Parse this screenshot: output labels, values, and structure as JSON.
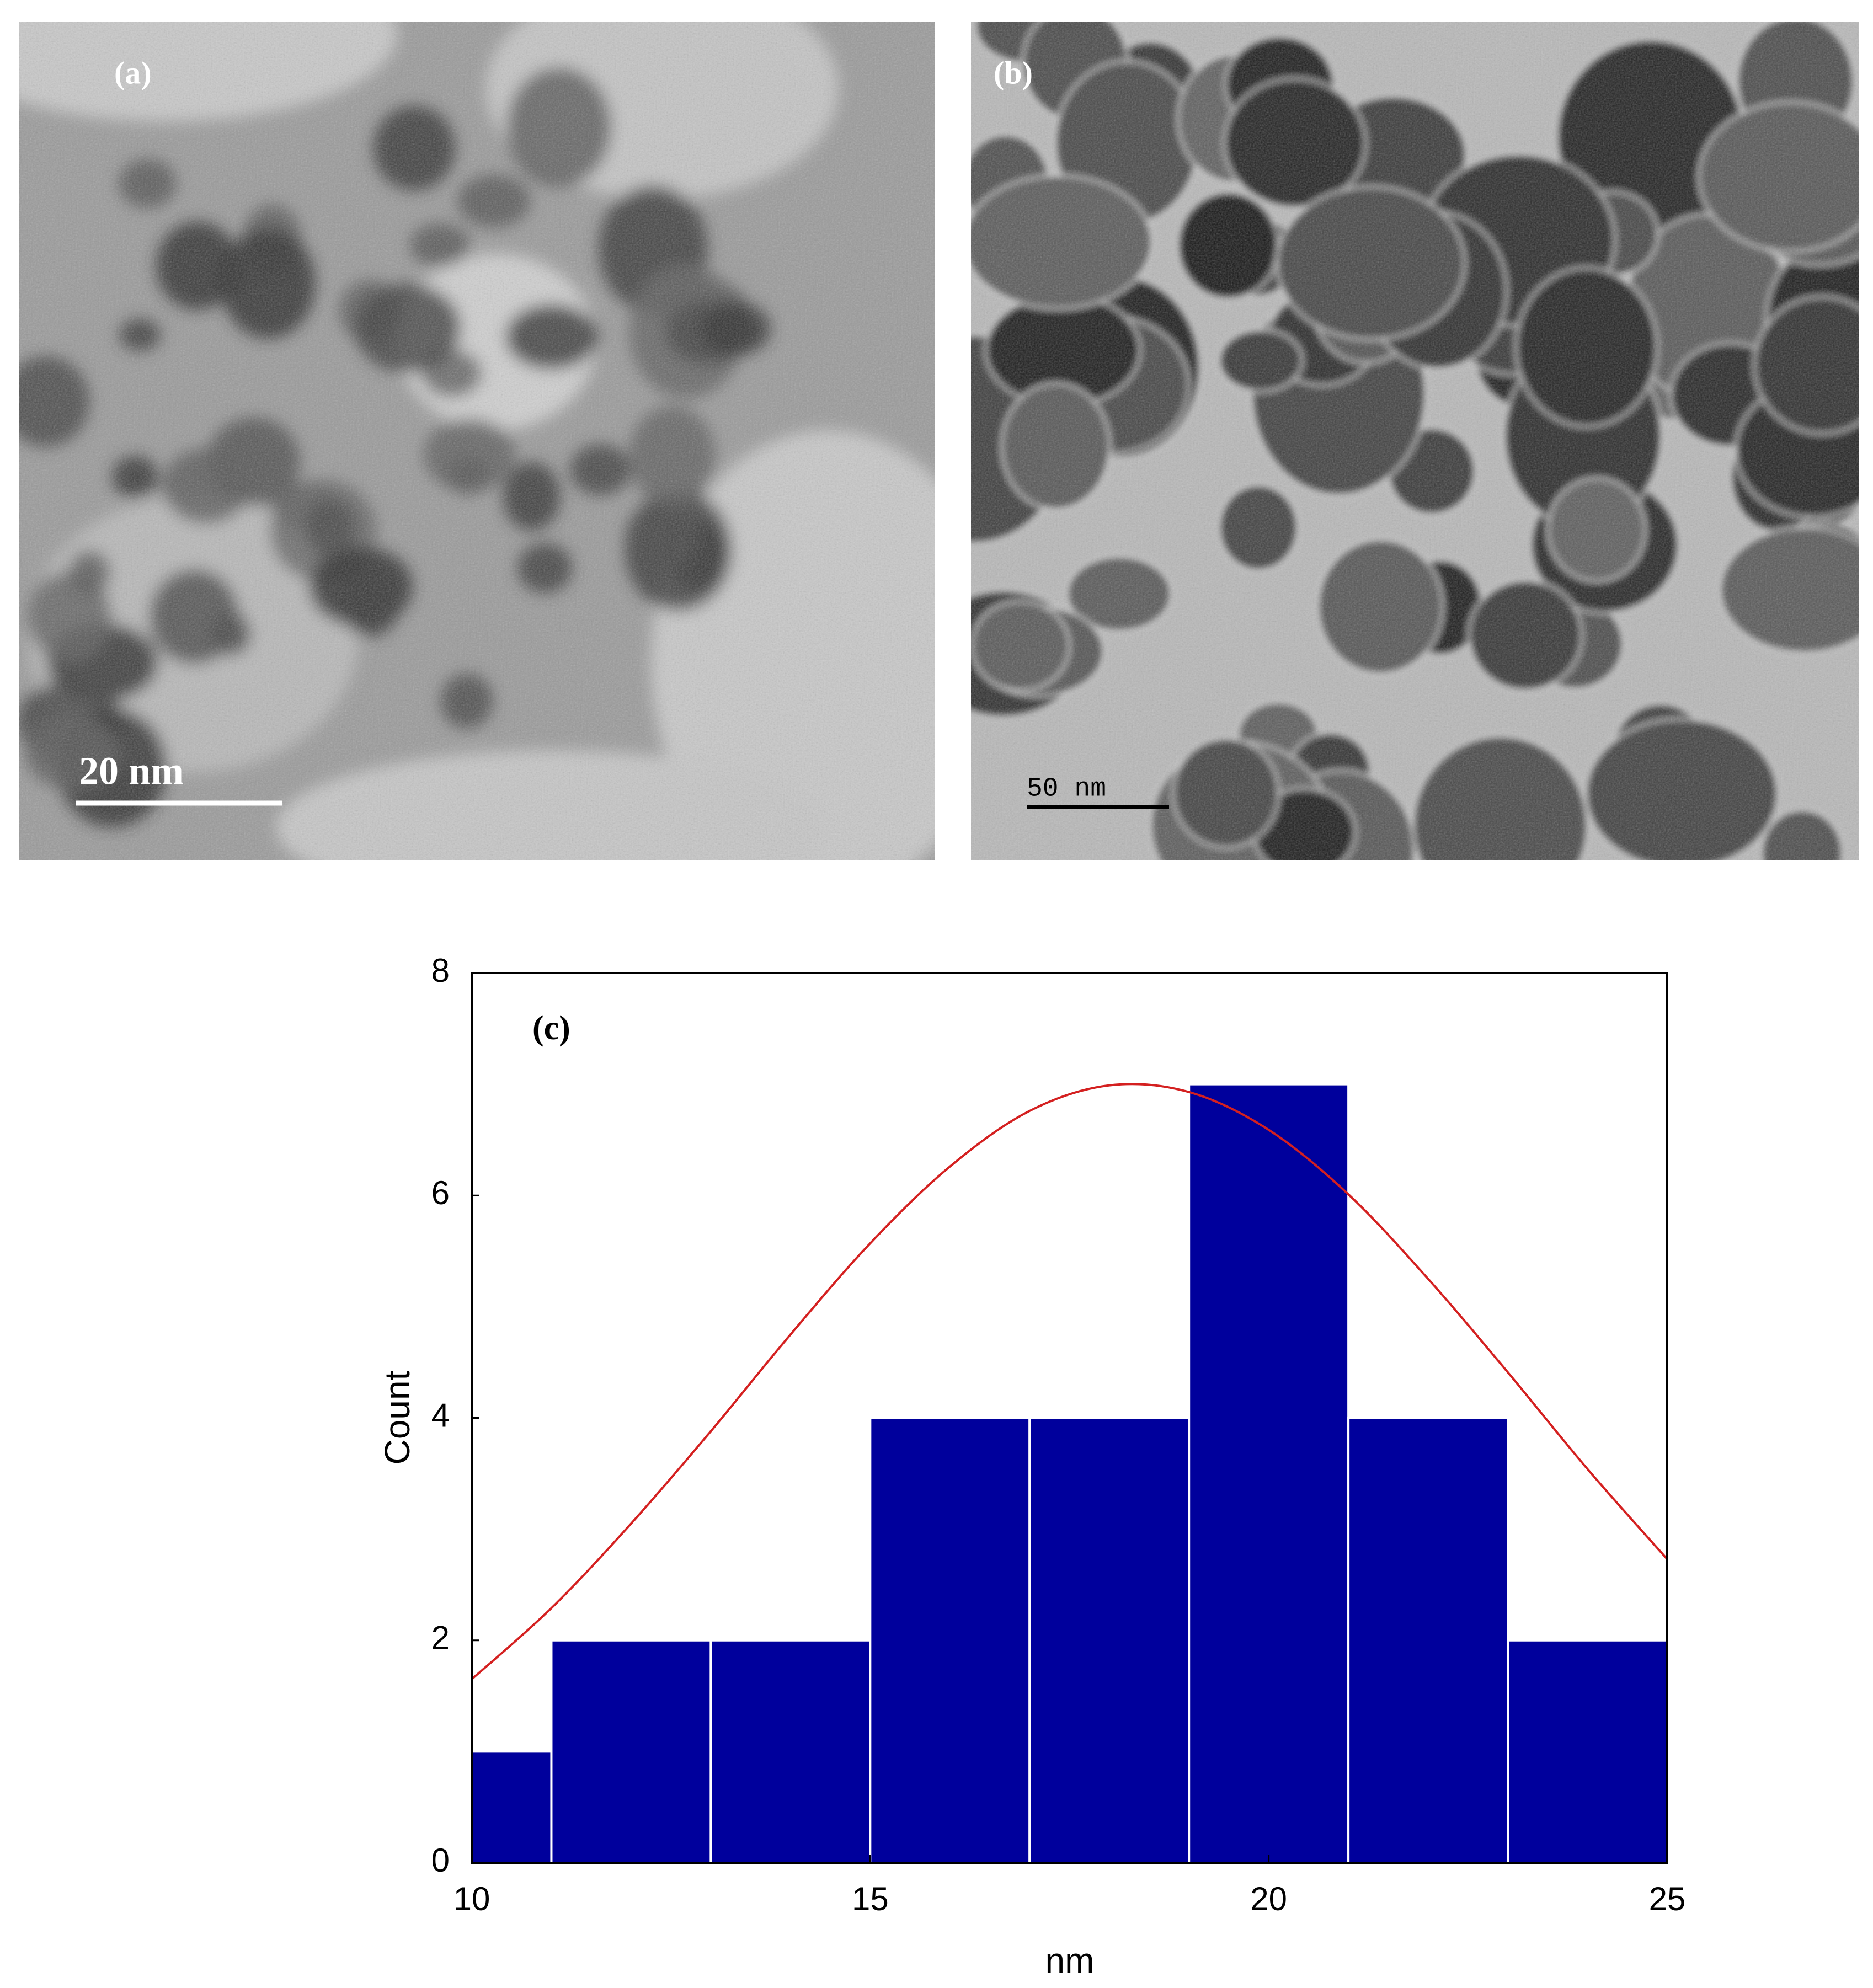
{
  "panels": [
    {
      "label": "(a)",
      "scale_bar": "20 nm"
    },
    {
      "label": "(b)",
      "scale_bar": "50 nm"
    }
  ],
  "chart_data": {
    "type": "histogram",
    "label": "(c)",
    "x_label": "nm",
    "y_label": "Count",
    "bins": [
      10,
      11,
      13,
      15,
      17,
      19,
      21,
      23,
      25
    ],
    "values": [
      1,
      2,
      2,
      4,
      4,
      7,
      4,
      2
    ],
    "color": "#00009c",
    "xlim": [
      10,
      25
    ],
    "xticks": [
      10,
      15,
      20,
      25
    ],
    "ylim": [
      0,
      8
    ],
    "yticks": [
      0,
      2,
      4,
      6,
      8
    ],
    "curve": {
      "color": "#d42020",
      "x": [
        10,
        11,
        12,
        13,
        14,
        15,
        16,
        17,
        18,
        19,
        20,
        21,
        22,
        23,
        24,
        25
      ],
      "y": [
        1.65,
        2.29,
        3.05,
        3.88,
        4.75,
        5.57,
        6.26,
        6.76,
        6.99,
        6.93,
        6.59,
        6.01,
        5.25,
        4.41,
        3.54,
        2.73
      ]
    }
  }
}
